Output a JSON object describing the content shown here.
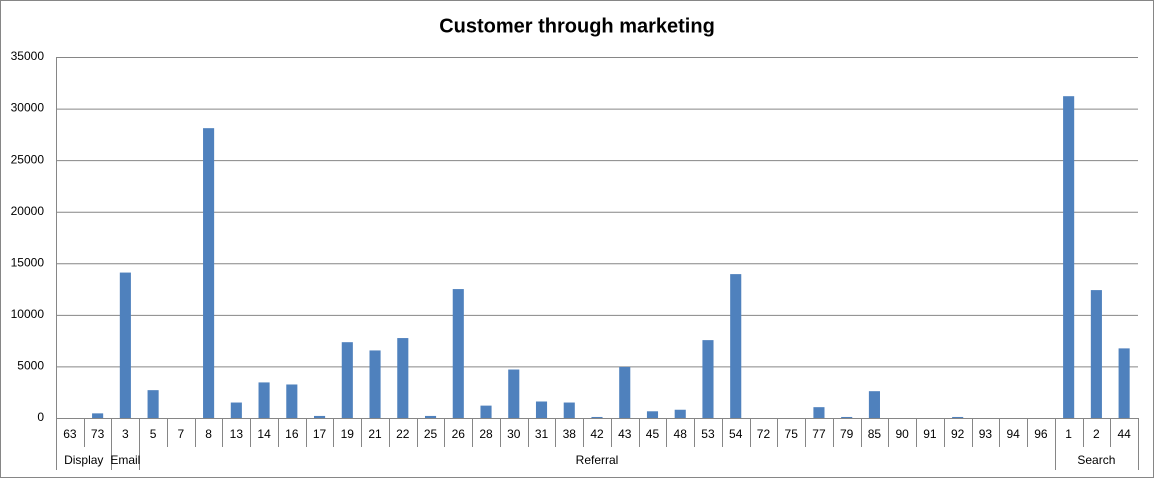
{
  "chart_data": {
    "type": "bar",
    "title": "Customer through marketing",
    "color": "#4f81bd",
    "ylim": [
      0,
      35000
    ],
    "yticks": [
      0,
      5000,
      10000,
      15000,
      20000,
      25000,
      30000,
      35000
    ],
    "grid": true,
    "groups": [
      {
        "name": "Display",
        "categories": [
          "63",
          "73"
        ],
        "values": [
          0,
          450
        ]
      },
      {
        "name": "Email",
        "categories": [
          "3"
        ],
        "values": [
          14100
        ]
      },
      {
        "name": "Referral",
        "categories": [
          "5",
          "7",
          "8",
          "13",
          "14",
          "16",
          "17",
          "19",
          "21",
          "22",
          "25",
          "26",
          "28",
          "30",
          "31",
          "38",
          "42",
          "43",
          "45",
          "48",
          "53",
          "54",
          "72",
          "75",
          "77",
          "79",
          "85",
          "90",
          "91",
          "92",
          "93",
          "94",
          "96"
        ],
        "values": [
          2700,
          0,
          28100,
          1500,
          3450,
          3250,
          200,
          7350,
          6550,
          7750,
          200,
          12500,
          1200,
          4700,
          1600,
          1500,
          100,
          4950,
          650,
          800,
          7550,
          13950,
          0,
          0,
          1050,
          100,
          2600,
          0,
          0,
          100,
          0,
          0,
          0
        ]
      },
      {
        "name": "Search",
        "categories": [
          "1",
          "2",
          "44"
        ],
        "values": [
          31200,
          12400,
          6750
        ]
      }
    ]
  }
}
